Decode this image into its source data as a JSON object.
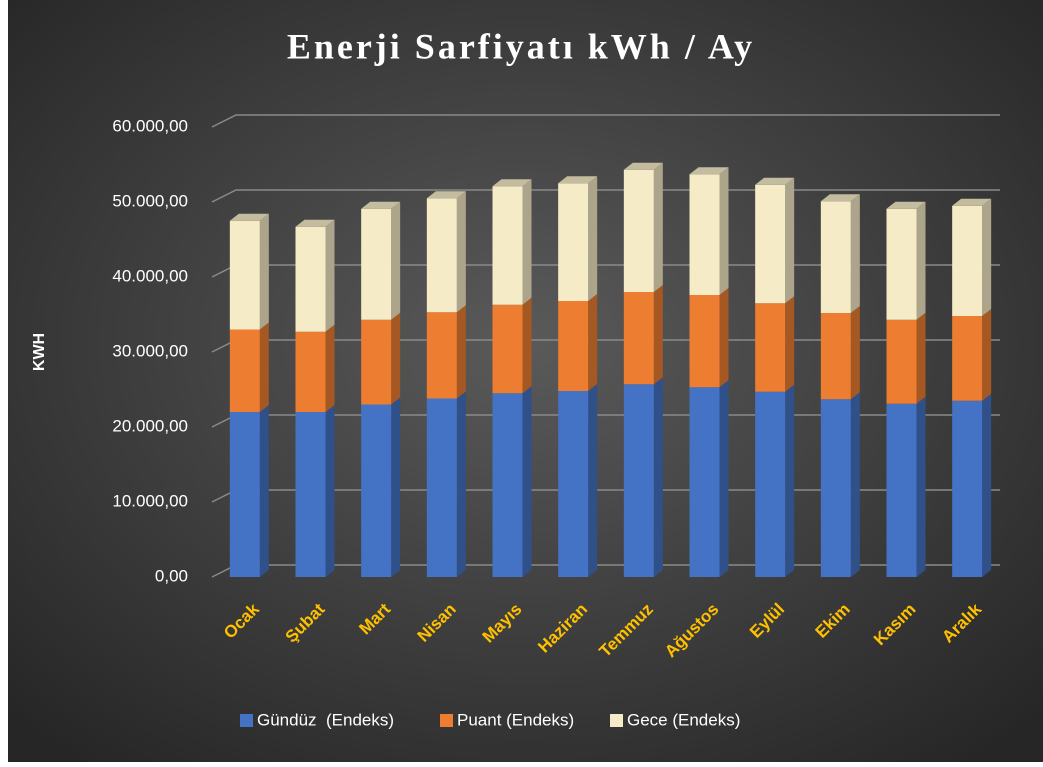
{
  "chart_data": {
    "type": "bar",
    "stacked": true,
    "title": "Enerji Sarfiyatı kWh / Ay",
    "y_label": "KWH",
    "categories": [
      "Ocak",
      "Şubat",
      "Mart",
      "Nisan",
      "Mayıs",
      "Haziran",
      "Temmuz",
      "Ağustos",
      "Eylül",
      "Ekim",
      "Kasım",
      "Aralık"
    ],
    "series": [
      {
        "name": "Gündüz  (Endeks)",
        "color": "#4472c4",
        "values": [
          22000,
          22000,
          23000,
          23800,
          24500,
          24800,
          25700,
          25300,
          24700,
          23700,
          23100,
          23500
        ]
      },
      {
        "name": "Puant (Endeks)",
        "color": "#ed7d31",
        "values": [
          11000,
          10700,
          11300,
          11500,
          11800,
          12000,
          12300,
          12300,
          11800,
          11500,
          11200,
          11300
        ]
      },
      {
        "name": "Gece (Endeks)",
        "color": "#f5ebc6",
        "values": [
          14500,
          14000,
          14800,
          15200,
          15800,
          15700,
          16300,
          16100,
          15800,
          14900,
          14800,
          14700
        ]
      }
    ],
    "ylim": [
      0,
      60000
    ],
    "yticks": [
      {
        "value": 0,
        "label": "0,00"
      },
      {
        "value": 10000,
        "label": "10.000,00"
      },
      {
        "value": 20000,
        "label": "20.000,00"
      },
      {
        "value": 30000,
        "label": "30.000,00"
      },
      {
        "value": 40000,
        "label": "40.000,00"
      },
      {
        "value": 50000,
        "label": "50.000,00"
      },
      {
        "value": 60000,
        "label": "60.000,00"
      }
    ],
    "grid": true,
    "legend": "bottom"
  }
}
